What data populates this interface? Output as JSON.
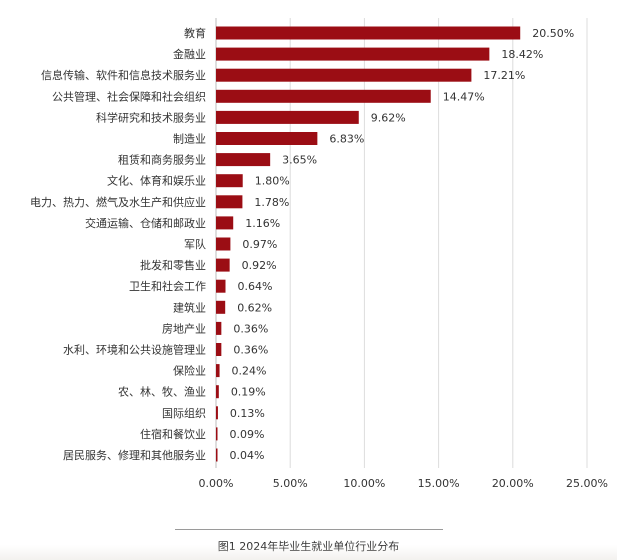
{
  "chart_data": {
    "type": "bar",
    "orientation": "horizontal",
    "categories": [
      "教育",
      "金融业",
      "信息传输、软件和信息技术服务业",
      "公共管理、社会保障和社会组织",
      "科学研究和技术服务业",
      "制造业",
      "租赁和商务服务业",
      "文化、体育和娱乐业",
      "电力、热力、燃气及水生产和供应业",
      "交通运输、仓储和邮政业",
      "军队",
      "批发和零售业",
      "卫生和社会工作",
      "建筑业",
      "房地产业",
      "水利、环境和公共设施管理业",
      "保险业",
      "农、林、牧、渔业",
      "国际组织",
      "住宿和餐饮业",
      "居民服务、修理和其他服务业"
    ],
    "values": [
      20.5,
      18.42,
      17.21,
      14.47,
      9.62,
      6.83,
      3.65,
      1.8,
      1.78,
      1.16,
      0.97,
      0.92,
      0.64,
      0.62,
      0.36,
      0.36,
      0.24,
      0.19,
      0.13,
      0.09,
      0.04
    ],
    "value_labels": [
      "20.50%",
      "18.42%",
      "17.21%",
      "14.47%",
      "9.62%",
      "6.83%",
      "3.65%",
      "1.80%",
      "1.78%",
      "1.16%",
      "0.97%",
      "0.92%",
      "0.64%",
      "0.62%",
      "0.36%",
      "0.36%",
      "0.24%",
      "0.19%",
      "0.13%",
      "0.09%",
      "0.04%"
    ],
    "x_ticks": [
      "0.00%",
      "5.00%",
      "10.00%",
      "15.00%",
      "20.00%",
      "25.00%"
    ],
    "xlim": [
      0,
      25
    ],
    "bar_color": "#9b0d14",
    "grid": "vertical",
    "grid_color": "#dcdcdc",
    "caption": "图1 2024年毕业生就业单位行业分布"
  }
}
